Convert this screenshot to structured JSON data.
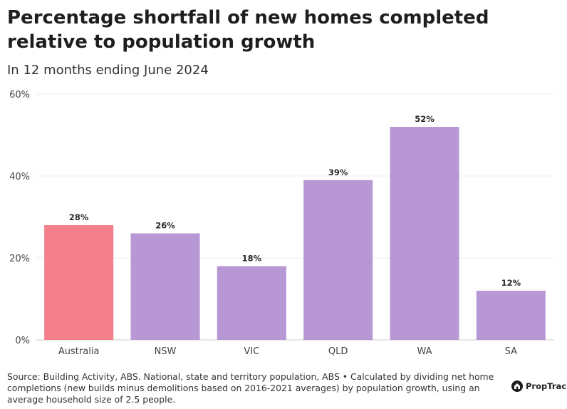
{
  "title": "Percentage shortfall of new homes completed relative to population growth",
  "subtitle": "In 12 months ending June 2024",
  "source": "Source: Building Activity, ABS. National, state and territory population, ABS • Calculated by dividing net home completions (new builds minus demolitions based on 2016-2021 averages) by population growth, using an average household size of 2.5 people.",
  "brand": "PropTrack",
  "colors": {
    "highlight": "#f3808a",
    "bar": "#b898d4",
    "grid": "#ececec",
    "axis": "#cccccc"
  },
  "chart_data": {
    "type": "bar",
    "title": "Percentage shortfall of new homes completed relative to population growth",
    "subtitle": "In 12 months ending June 2024",
    "categories": [
      "Australia",
      "NSW",
      "VIC",
      "QLD",
      "WA",
      "SA"
    ],
    "values": [
      28,
      26,
      18,
      39,
      52,
      12
    ],
    "data_labels": [
      "28%",
      "26%",
      "18%",
      "39%",
      "52%",
      "12%"
    ],
    "highlight_index": 0,
    "ylim": [
      0,
      60
    ],
    "yticks": [
      0,
      20,
      40,
      60
    ],
    "ytick_labels": [
      "0%",
      "20%",
      "40%",
      "60%"
    ],
    "xlabel": "",
    "ylabel": "",
    "grid": true
  }
}
